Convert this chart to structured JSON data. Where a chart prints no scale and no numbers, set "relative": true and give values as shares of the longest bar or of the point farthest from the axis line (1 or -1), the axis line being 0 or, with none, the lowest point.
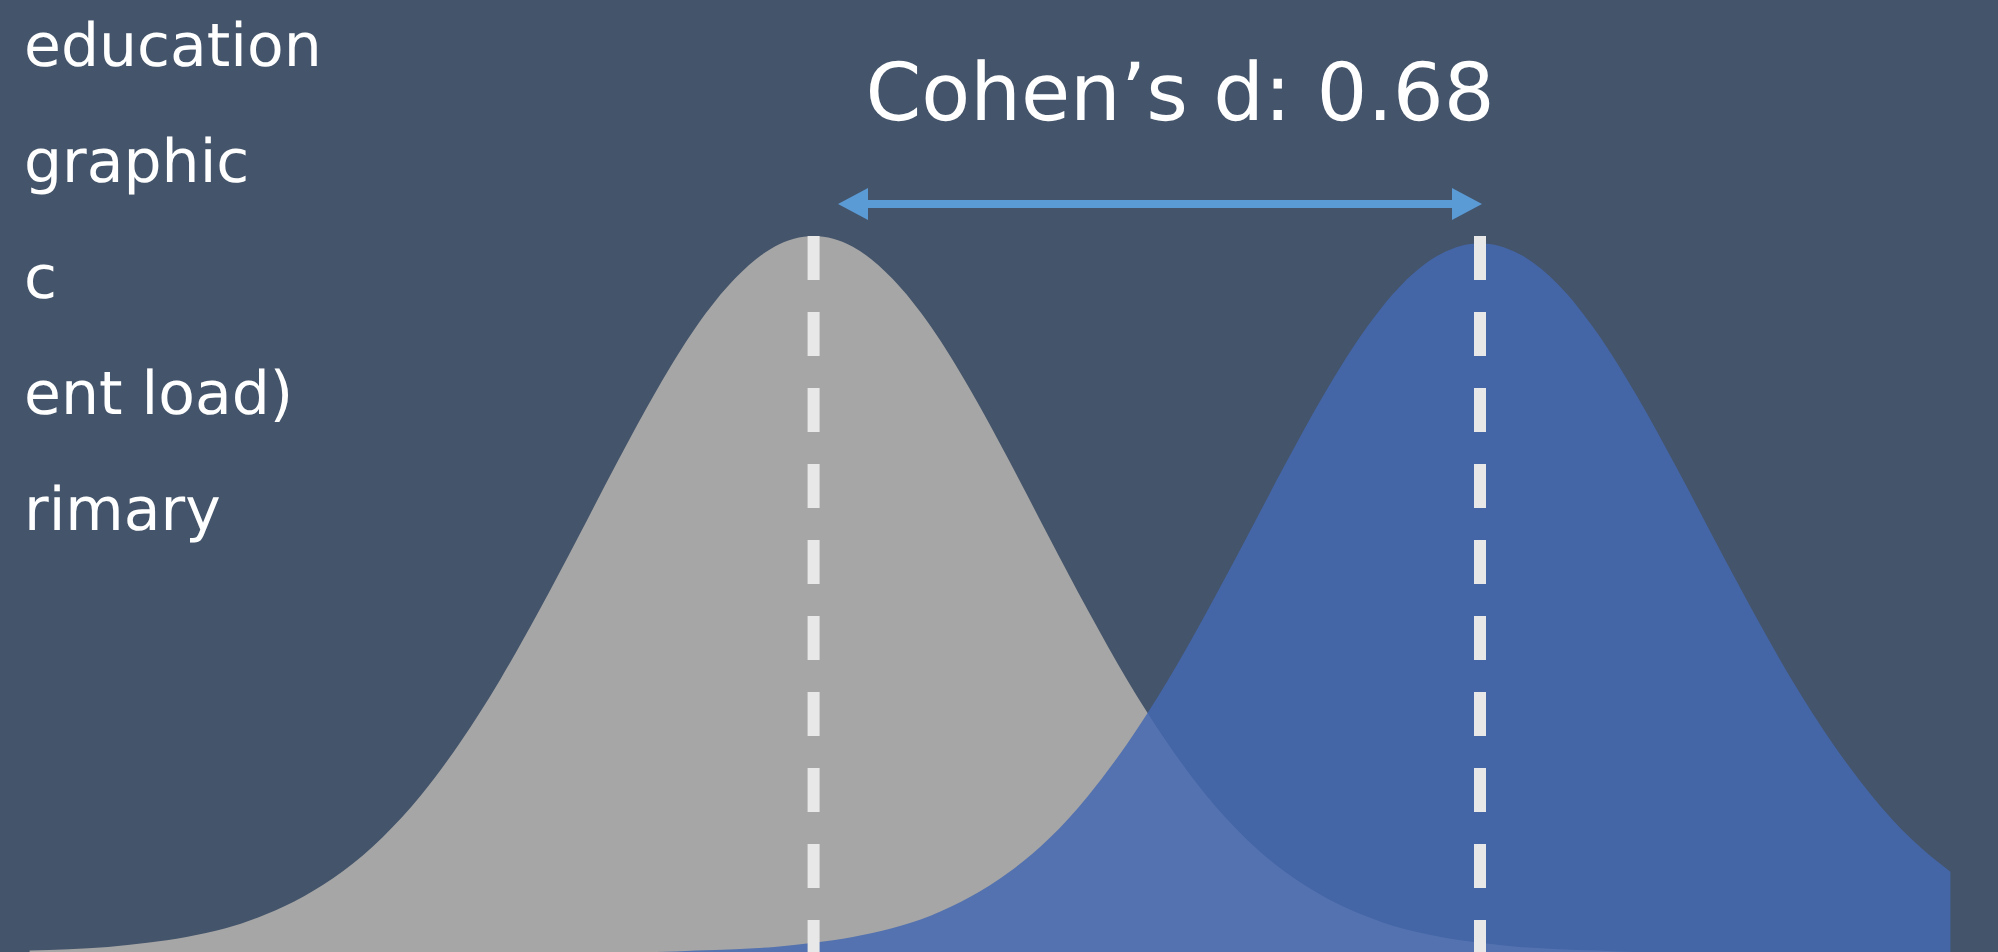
{
  "chart_data": {
    "type": "area",
    "title": "Cohen’s d: 0.68",
    "relative": true,
    "annotations": [
      "education",
      "graphic",
      "c",
      "ent load)",
      "rimary"
    ],
    "categories": [
      null,
      null,
      null,
      null,
      null,
      null,
      null,
      null,
      null,
      null,
      null,
      null,
      null,
      null,
      null,
      null,
      null,
      null,
      null,
      null,
      null,
      null,
      null,
      null,
      null,
      null,
      null,
      null,
      null,
      null,
      null,
      null,
      null,
      null,
      null,
      null,
      null,
      null,
      null,
      null,
      null,
      null,
      null,
      null,
      null,
      null,
      null,
      null,
      null,
      null
    ],
    "series": [
      {
        "color": "#a6a6a6",
        "values": [
          0.002,
          0.004,
          0.007,
          0.013,
          0.021,
          0.033,
          0.052,
          0.078,
          0.113,
          0.16,
          0.22,
          0.294,
          0.38,
          0.477,
          0.58,
          0.685,
          0.785,
          0.873,
          0.941,
          0.985,
          1,
          0.985,
          0.941,
          0.873,
          0.785,
          0.685,
          0.58,
          0.477,
          0.38,
          0.294,
          0.22,
          0.16,
          0.113,
          0.078,
          0.052,
          0.033,
          0.021,
          0.013,
          0.007,
          0.004,
          0.002,
          0,
          0,
          0,
          0,
          0,
          0,
          0,
          0,
          0
        ]
      },
      {
        "color": "#4469b0",
        "values": [
          0,
          0,
          0,
          0,
          0,
          0,
          0,
          0,
          0,
          0,
          0,
          0,
          0,
          0,
          0,
          0,
          0,
          0.002,
          0.004,
          0.007,
          0.013,
          0.021,
          0.033,
          0.051,
          0.077,
          0.112,
          0.158,
          0.218,
          0.291,
          0.376,
          0.472,
          0.574,
          0.678,
          0.777,
          0.864,
          0.932,
          0.975,
          0.99,
          0.975,
          0.932,
          0.864,
          0.777,
          0.678,
          0.574,
          0.472,
          0.376,
          0.291,
          0.218,
          0.158,
          0.112
        ]
      }
    ]
  }
}
